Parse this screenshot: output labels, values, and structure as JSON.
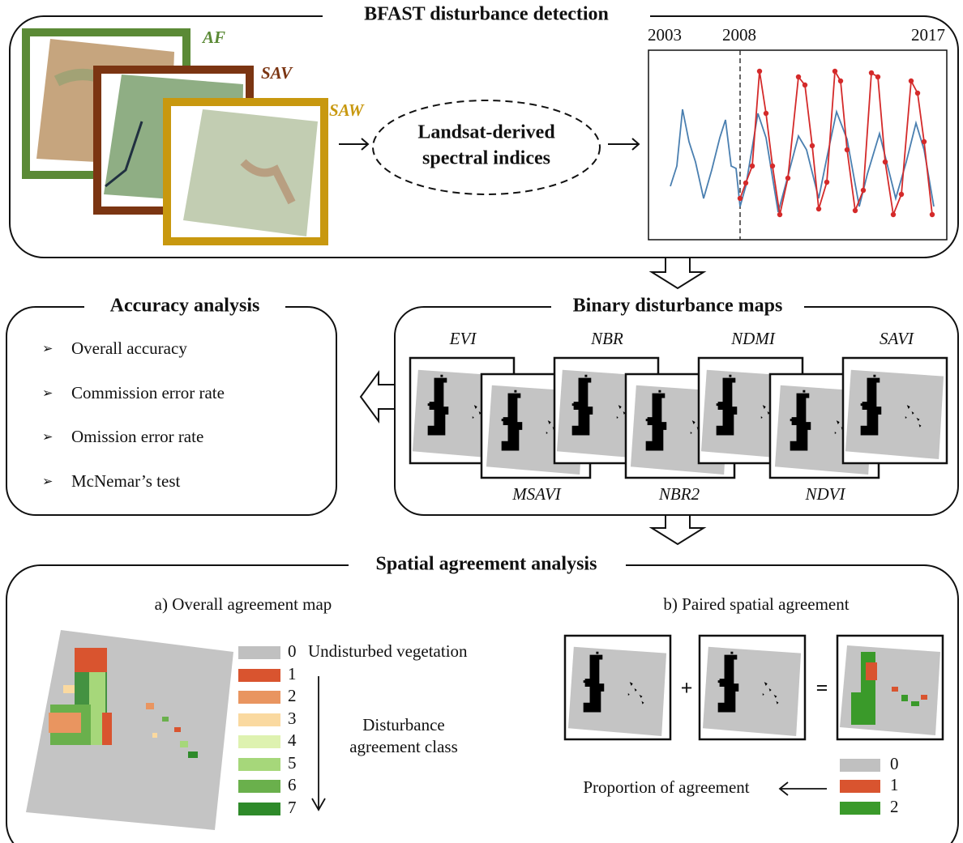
{
  "bfast": {
    "title": "BFAST disturbance detection",
    "sites": [
      "AF",
      "SAV",
      "SAW"
    ],
    "process": [
      "Landsat-derived",
      "spectral indices"
    ],
    "years": [
      "2003",
      "2008",
      "2017"
    ]
  },
  "accuracy": {
    "title": "Accuracy analysis",
    "items": [
      "Overall accuracy",
      "Commission error rate",
      "Omission error rate",
      "McNemar’s test"
    ]
  },
  "binary": {
    "title": "Binary disturbance maps",
    "top": [
      "EVI",
      "NBR",
      "NDMI",
      "SAVI"
    ],
    "bottom": [
      "MSAVI",
      "NBR2",
      "NDVI"
    ]
  },
  "spatial": {
    "title": "Spatial agreement analysis",
    "panel_a": {
      "title": "a) Overall agreement map",
      "classes": [
        "0",
        "1",
        "2",
        "3",
        "4",
        "5",
        "6",
        "7"
      ],
      "class_0_label": "Undisturbed vegetation",
      "axis_label": [
        "Disturbance",
        "agreement class"
      ]
    },
    "panel_b": {
      "title": "b) Paired spatial agreement",
      "operators": [
        "+",
        "="
      ],
      "classes": [
        "0",
        "1",
        "2"
      ],
      "output": "Proportion of agreement"
    }
  }
}
